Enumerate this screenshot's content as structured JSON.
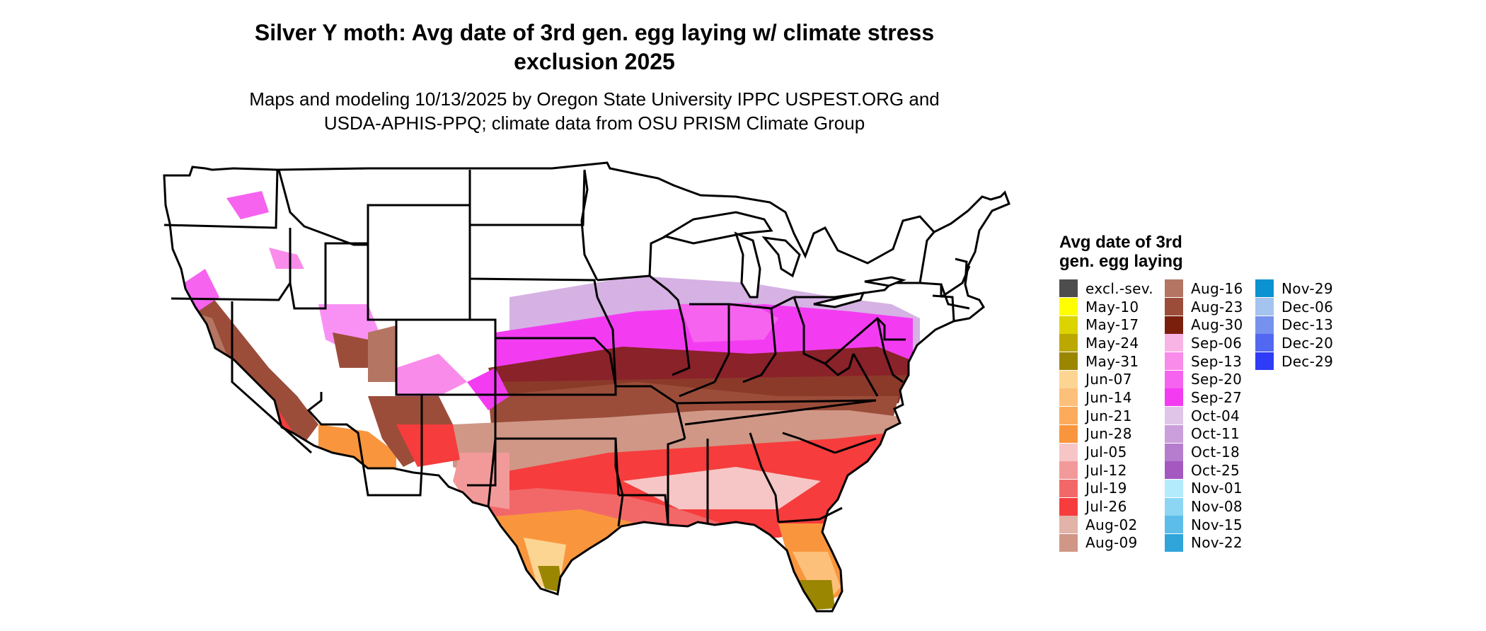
{
  "title_line1": "Silver Y moth: Avg date of 3rd gen. egg laying w/ climate stress",
  "title_line2": "exclusion 2025",
  "subtitle_line1": "Maps and modeling 10/13/2025 by Oregon State University IPPC USPEST.ORG and",
  "subtitle_line2": "USDA-APHIS-PPQ; climate data from OSU PRISM Climate Group",
  "legend": {
    "title": "Avg date of 3rd\ngen. egg laying",
    "columns": [
      [
        {
          "label": "excl.-sev.",
          "color": "#4d4d4d"
        },
        {
          "label": "May-10",
          "color": "#ffff00"
        },
        {
          "label": "May-17",
          "color": "#dcd400"
        },
        {
          "label": "May-24",
          "color": "#bba800"
        },
        {
          "label": "May-31",
          "color": "#9a8600"
        },
        {
          "label": "Jun-07",
          "color": "#fdd592"
        },
        {
          "label": "Jun-14",
          "color": "#fcc07a"
        },
        {
          "label": "Jun-21",
          "color": "#fbab5b"
        },
        {
          "label": "Jun-28",
          "color": "#f9963d"
        },
        {
          "label": "Jul-05",
          "color": "#f6c6c6"
        },
        {
          "label": "Jul-12",
          "color": "#f29a9a"
        },
        {
          "label": "Jul-19",
          "color": "#f26868"
        },
        {
          "label": "Jul-26",
          "color": "#f63c3c"
        },
        {
          "label": "Aug-02",
          "color": "#e2b3a8"
        },
        {
          "label": "Aug-09",
          "color": "#d09786"
        }
      ],
      [
        {
          "label": "Aug-16",
          "color": "#b57563"
        },
        {
          "label": "Aug-23",
          "color": "#9b4d3a"
        },
        {
          "label": "Aug-30",
          "color": "#7b1f0d"
        },
        {
          "label": "Sep-06",
          "color": "#f9b4e6"
        },
        {
          "label": "Sep-13",
          "color": "#f98bea"
        },
        {
          "label": "Sep-20",
          "color": "#f663ef"
        },
        {
          "label": "Sep-27",
          "color": "#f33cf2"
        },
        {
          "label": "Oct-04",
          "color": "#e1c5e9"
        },
        {
          "label": "Oct-11",
          "color": "#cb9fdc"
        },
        {
          "label": "Oct-18",
          "color": "#b67ccd"
        },
        {
          "label": "Oct-25",
          "color": "#a458c0"
        },
        {
          "label": "Nov-01",
          "color": "#b4ebfc"
        },
        {
          "label": "Nov-08",
          "color": "#8cd6f4"
        },
        {
          "label": "Nov-15",
          "color": "#5dbde8"
        },
        {
          "label": "Nov-22",
          "color": "#2fa5da"
        }
      ],
      [
        {
          "label": "Nov-29",
          "color": "#0a93d0"
        },
        {
          "label": "Dec-06",
          "color": "#a4c3ee"
        },
        {
          "label": "Dec-13",
          "color": "#7792ee"
        },
        {
          "label": "Dec-20",
          "color": "#5368f1"
        },
        {
          "label": "Dec-29",
          "color": "#2e3bf7"
        }
      ]
    ]
  }
}
